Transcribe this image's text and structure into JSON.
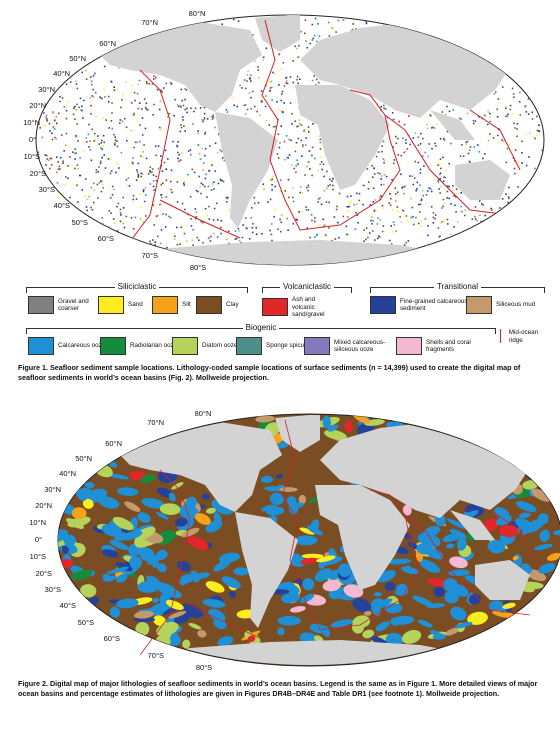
{
  "figure1": {
    "lat_labels": [
      "80°N",
      "70°N",
      "60°N",
      "50°N",
      "40°N",
      "30°N",
      "20°N",
      "10°N",
      "0°",
      "10°S",
      "20°S",
      "30°S",
      "40°S",
      "50°S",
      "60°S",
      "70°S",
      "80°S"
    ],
    "caption_label": "Figure 1.",
    "caption": "Seafloor sediment sample locations. Lithology-coded sample locations of surface sediments (n = 14,399) used to create the digital map of seafloor sediments in world’s ocean basins (Fig. 2). Mollweide projection."
  },
  "legend": {
    "groups": [
      {
        "name": "Siliciclastic",
        "items": [
          {
            "label": "Gravel and coarser",
            "color": "#808080"
          },
          {
            "label": "Sand",
            "color": "#ffed1f"
          },
          {
            "label": "Silt",
            "color": "#f7a21b"
          },
          {
            "label": "Clay",
            "color": "#7a4d22"
          }
        ]
      },
      {
        "name": "Volcaniclastic",
        "items": [
          {
            "label": "Ash and volcanic sand/gravel",
            "color": "#e3262a"
          }
        ]
      },
      {
        "name": "Transitional",
        "items": [
          {
            "label": "Fine-grained calcareous sediment",
            "color": "#25419a"
          },
          {
            "label": "Siliceous mud",
            "color": "#c49a6c"
          }
        ]
      },
      {
        "name": "Biogenic",
        "items": [
          {
            "label": "Calcareous ooze",
            "color": "#1f8fd6"
          },
          {
            "label": "Radiolarian ooze",
            "color": "#138c3c"
          },
          {
            "label": "Diatom ooze",
            "color": "#b5d35a"
          },
          {
            "label": "Sponge spicules",
            "color": "#4e8f8a"
          },
          {
            "label": "Mixed calcareous-siliceous ooze",
            "color": "#8579bd"
          },
          {
            "label": "Shells and coral fragments",
            "color": "#f4b8d3"
          }
        ]
      }
    ],
    "ridge": {
      "label": "Mid-ocean ridge",
      "color": "#d42027"
    }
  },
  "figure2": {
    "lat_labels": [
      "80°N",
      "70°N",
      "60°N",
      "50°N",
      "40°N",
      "30°N",
      "20°N",
      "10°N",
      "0°",
      "10°S",
      "20°S",
      "30°S",
      "40°S",
      "50°S",
      "60°S",
      "70°S",
      "80°S"
    ],
    "caption_label": "Figure 2.",
    "caption": "Digital map of major lithologies of seafloor sediments in world’s ocean basins. Legend is the same as in Figure 1. More detailed views of major ocean basins and percentage estimates of lithologies are given in Figures DR4B–DR4E and Table DR1 (see footnote 1). Mollweide projection."
  }
}
